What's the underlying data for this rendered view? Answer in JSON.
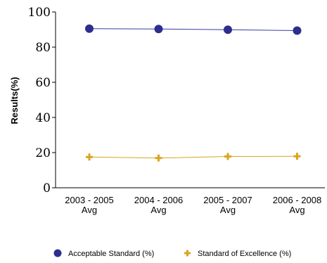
{
  "chart_data": {
    "type": "line",
    "title": "",
    "xlabel": "",
    "ylabel": "Results(%)",
    "ylim": [
      0,
      100
    ],
    "yticks": [
      0,
      20,
      40,
      60,
      80,
      100
    ],
    "categories": [
      [
        "2003 - 2005",
        "Avg"
      ],
      [
        "2004 - 2006",
        "Avg"
      ],
      [
        "2005 - 2007",
        "Avg"
      ],
      [
        "2006 - 2008",
        "Avg"
      ]
    ],
    "series": [
      {
        "name": "Acceptable Standard (%)",
        "values": [
          90.5,
          90.3,
          89.9,
          89.4
        ],
        "color": "#2e2e8f",
        "line_color": "#3a3aa0",
        "marker": "circle"
      },
      {
        "name": "Standard of Excellence (%)",
        "values": [
          17.5,
          16.9,
          17.8,
          17.9
        ],
        "color": "#d9a520",
        "line_color": "#d9a520",
        "marker": "plus"
      }
    ],
    "grid": false,
    "legend_position": "bottom"
  }
}
